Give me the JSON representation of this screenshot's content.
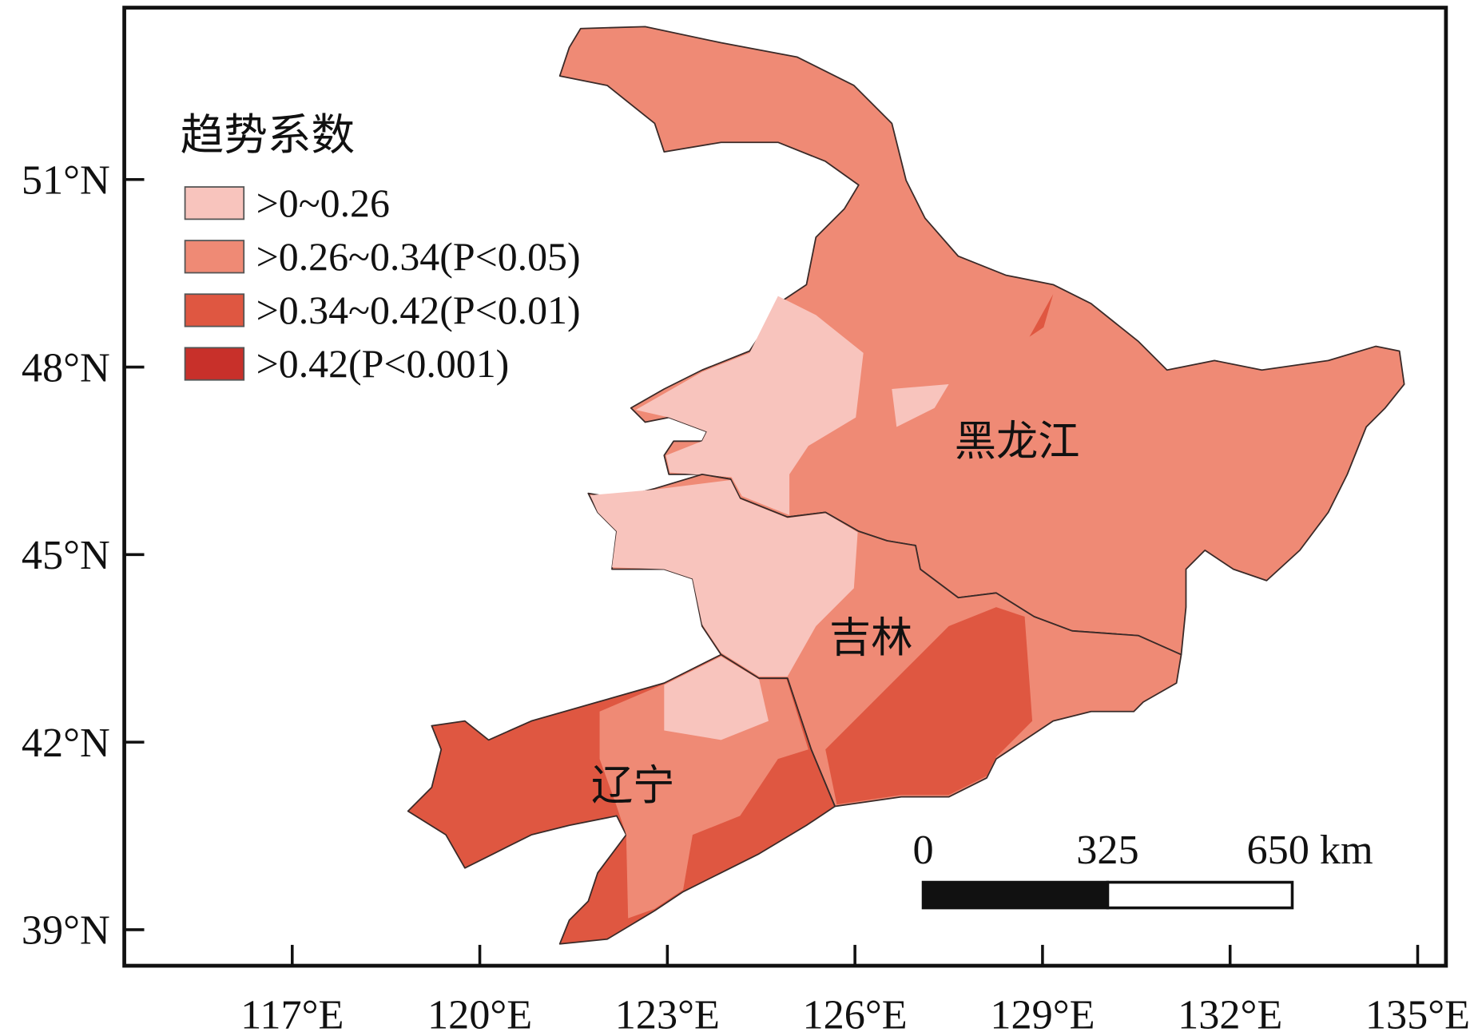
{
  "map": {
    "legend": {
      "title": "趋势系数",
      "items": [
        {
          "label": ">0~0.26",
          "color": "#f8c4bd"
        },
        {
          "label": ">0.26~0.34(P<0.05)",
          "color": "#ef8a75"
        },
        {
          "label": ">0.34~0.42(P<0.01)",
          "color": "#df5741"
        },
        {
          "label": ">0.42(P<0.001)",
          "color": "#c8302a"
        }
      ]
    },
    "labels": [
      "黑龙江",
      "吉林",
      "辽宁"
    ],
    "xticks": [
      {
        "value": 117,
        "label": "117°E"
      },
      {
        "value": 120,
        "label": "120°E"
      },
      {
        "value": 123,
        "label": "123°E"
      },
      {
        "value": 126,
        "label": "126°E"
      },
      {
        "value": 129,
        "label": "129°E"
      },
      {
        "value": 132,
        "label": "132°E"
      },
      {
        "value": 135,
        "label": "135°E"
      }
    ],
    "yticks": [
      {
        "value": 39,
        "label": "39°N"
      },
      {
        "value": 42,
        "label": "42°N"
      },
      {
        "value": 45,
        "label": "45°N"
      },
      {
        "value": 48,
        "label": "48°N"
      },
      {
        "value": 51,
        "label": "51°N"
      }
    ],
    "scale_bar": {
      "ticks": [
        0,
        325,
        {
          "value": 650,
          "label": "650 km"
        }
      ]
    }
  }
}
